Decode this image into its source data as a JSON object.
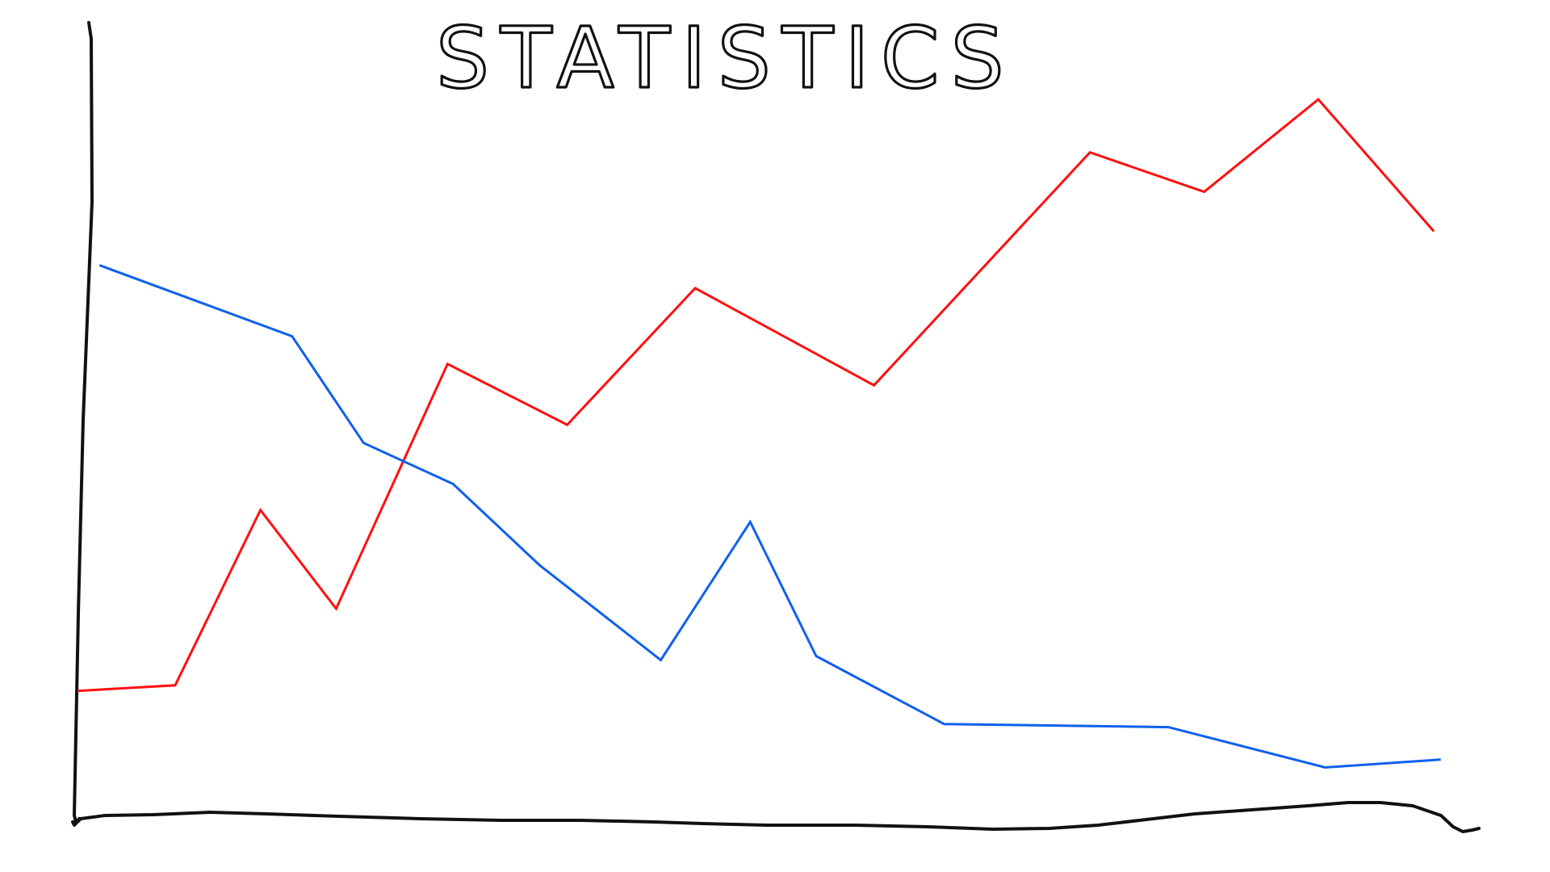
{
  "chart_data": {
    "type": "line",
    "title": "STATISTICS",
    "xlabel": "",
    "ylabel": "",
    "xlim": [
      0,
      100
    ],
    "ylim": [
      0,
      100
    ],
    "grid": false,
    "legend": "none",
    "series": [
      {
        "color": "#ff1010",
        "points": [
          [
            0,
            16.6
          ],
          [
            7.1,
            17.3
          ],
          [
            13.3,
            39.5
          ],
          [
            18.8,
            27.0
          ],
          [
            26.9,
            58.0
          ],
          [
            35.6,
            50.3
          ],
          [
            44.9,
            67.6
          ],
          [
            57.9,
            55.3
          ],
          [
            73.6,
            84.8
          ],
          [
            81.9,
            79.8
          ],
          [
            90.2,
            91.5
          ],
          [
            98.6,
            74.8
          ]
        ]
      },
      {
        "color": "#1060ee",
        "points": [
          [
            1.6,
            70.5
          ],
          [
            15.6,
            61.5
          ],
          [
            20.8,
            48.0
          ],
          [
            27.3,
            42.8
          ],
          [
            33.6,
            32.5
          ],
          [
            42.4,
            20.5
          ],
          [
            48.9,
            38.0
          ],
          [
            53.7,
            21.0
          ],
          [
            63.0,
            12.4
          ],
          [
            79.3,
            12.0
          ],
          [
            90.7,
            6.9
          ],
          [
            99.1,
            7.9
          ]
        ]
      }
    ]
  }
}
